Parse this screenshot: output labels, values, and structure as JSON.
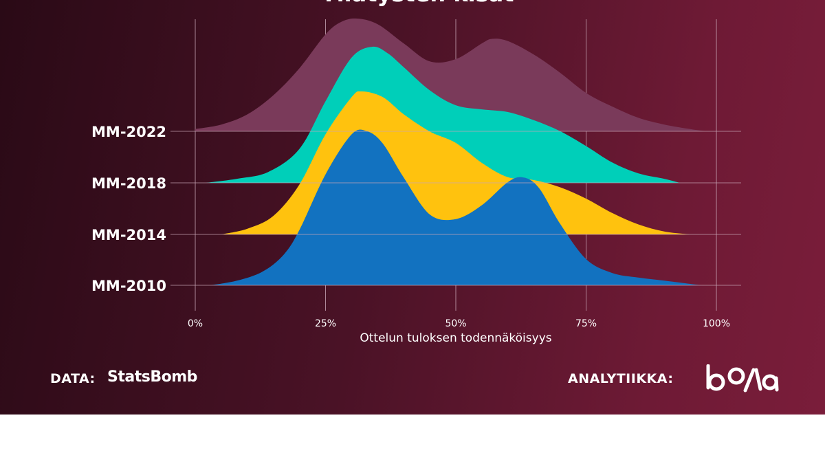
{
  "chart_data": {
    "type": "ridgeline",
    "title": "Ylläty­sten kisat",
    "xlabel": "Ottelun tuloksen todennäköisyys",
    "x_ticks": [
      "0%",
      "25%",
      "50%",
      "75%",
      "100%"
    ],
    "xlim": [
      0,
      100
    ],
    "grid": true,
    "series": [
      {
        "name": "MM-2022",
        "color": "#7a3a5a",
        "x": [
          0,
          5,
          10,
          15,
          20,
          25,
          28,
          31,
          35,
          40,
          45,
          50,
          55,
          57,
          60,
          65,
          70,
          75,
          80,
          85,
          90,
          95,
          98
        ],
        "density": [
          0.02,
          0.06,
          0.15,
          0.32,
          0.56,
          0.86,
          0.97,
          1.0,
          0.95,
          0.78,
          0.62,
          0.64,
          0.78,
          0.82,
          0.8,
          0.68,
          0.52,
          0.34,
          0.22,
          0.12,
          0.06,
          0.02,
          0.0
        ]
      },
      {
        "name": "MM-2018",
        "color": "#00cfb9",
        "x": [
          2,
          8,
          14,
          20,
          25,
          30,
          34,
          37,
          40,
          45,
          50,
          55,
          60,
          65,
          70,
          75,
          80,
          85,
          90,
          93
        ],
        "density": [
          0.0,
          0.03,
          0.08,
          0.25,
          0.6,
          0.92,
          1.0,
          0.95,
          0.85,
          0.68,
          0.57,
          0.54,
          0.52,
          0.46,
          0.38,
          0.27,
          0.15,
          0.07,
          0.03,
          0.0
        ]
      },
      {
        "name": "MM-2014",
        "color": "#ffc20e",
        "x": [
          5,
          10,
          15,
          20,
          25,
          30,
          32,
          36,
          40,
          45,
          50,
          55,
          60,
          65,
          70,
          75,
          80,
          85,
          90,
          95
        ],
        "density": [
          0.0,
          0.04,
          0.13,
          0.35,
          0.7,
          0.96,
          1.0,
          0.96,
          0.84,
          0.72,
          0.64,
          0.5,
          0.4,
          0.38,
          0.33,
          0.25,
          0.15,
          0.07,
          0.02,
          0.0
        ]
      },
      {
        "name": "MM-2010",
        "color": "#1272c0",
        "x": [
          3,
          8,
          13,
          17,
          20,
          25,
          30,
          33,
          36,
          40,
          45,
          50,
          55,
          60,
          63,
          66,
          70,
          75,
          80,
          85,
          90,
          97
        ],
        "density": [
          0.0,
          0.03,
          0.09,
          0.2,
          0.36,
          0.72,
          0.98,
          1.0,
          0.92,
          0.7,
          0.46,
          0.43,
          0.52,
          0.67,
          0.7,
          0.63,
          0.4,
          0.17,
          0.08,
          0.05,
          0.03,
          0.0
        ]
      }
    ]
  },
  "footer": {
    "data_label": "DATA:",
    "data_source": "StatsBomb",
    "analytics_label": "ANALYTIIKKA:",
    "analytics_logo_name": "bolla-logo"
  },
  "colors": {
    "background_dark": "#2a0a16",
    "background_light": "#7a1d3a",
    "grid": "#c8a6b6",
    "text": "#ffffff"
  }
}
